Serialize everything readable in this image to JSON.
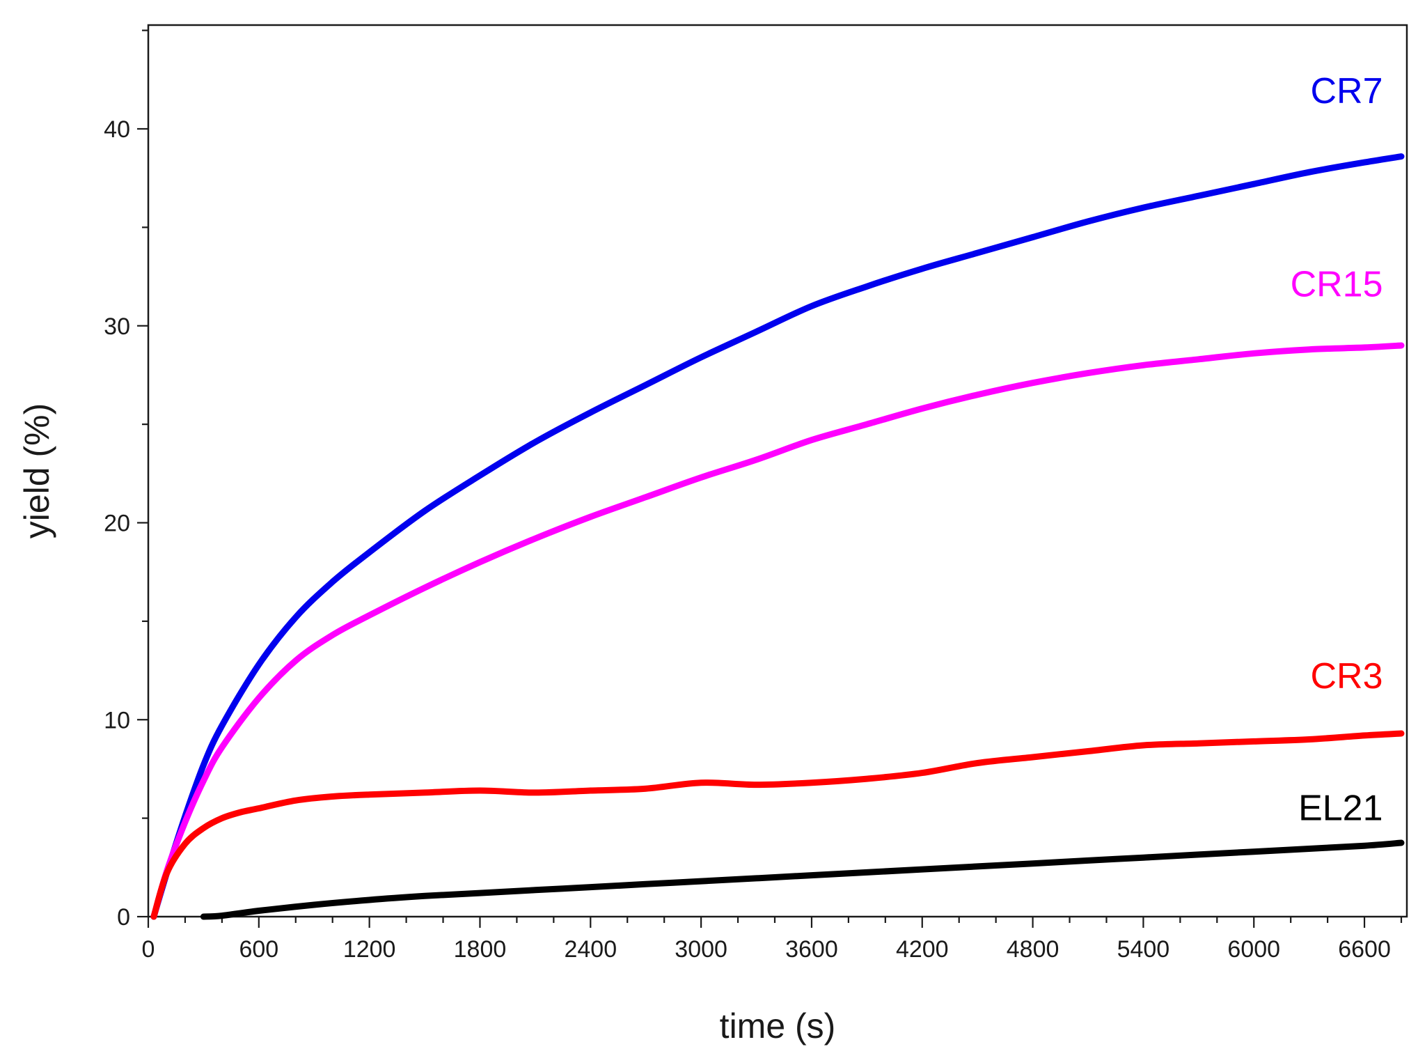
{
  "chart_data": {
    "type": "line",
    "title": "",
    "xlabel": "time (s)",
    "ylabel": "yield (%)",
    "xlim": [
      0,
      6800
    ],
    "ylim": [
      0,
      45
    ],
    "x_ticks": [
      0,
      600,
      1200,
      1800,
      2400,
      3000,
      3600,
      4200,
      4800,
      5400,
      6000,
      6600
    ],
    "x_tick_labels": [
      "0",
      "600",
      "1200",
      "1800",
      "2400",
      "3000",
      "3600",
      "4200",
      "4800",
      "5400",
      "6000",
      "6600"
    ],
    "x_minor_step": 200,
    "y_ticks": [
      0,
      10,
      20,
      30,
      40
    ],
    "y_tick_labels": [
      "0",
      "10",
      "20",
      "30",
      "40"
    ],
    "y_minor_step": 5,
    "grid": false,
    "legend": "none",
    "series": [
      {
        "name": "CR7",
        "color": "#0000ee",
        "label_anchor": [
          6700,
          41.3
        ],
        "x": [
          30,
          100,
          200,
          300,
          400,
          600,
          800,
          1000,
          1200,
          1500,
          1800,
          2100,
          2400,
          2700,
          3000,
          3300,
          3600,
          3900,
          4200,
          4500,
          4800,
          5100,
          5400,
          5700,
          6000,
          6300,
          6600,
          6800
        ],
        "y": [
          0,
          2.2,
          5.1,
          7.7,
          9.7,
          12.8,
          15.2,
          17.0,
          18.5,
          20.6,
          22.4,
          24.1,
          25.6,
          27.0,
          28.4,
          29.7,
          31.0,
          32.0,
          32.9,
          33.7,
          34.5,
          35.3,
          36.0,
          36.6,
          37.2,
          37.8,
          38.3,
          38.6
        ]
      },
      {
        "name": "CR15",
        "color": "#ff00ff",
        "label_anchor": [
          6700,
          31.5
        ],
        "x": [
          30,
          100,
          200,
          300,
          400,
          600,
          800,
          1000,
          1200,
          1500,
          1800,
          2100,
          2400,
          2700,
          3000,
          3300,
          3600,
          3900,
          4200,
          4500,
          4800,
          5100,
          5400,
          5700,
          6000,
          6300,
          6600,
          6800
        ],
        "y": [
          0,
          2.3,
          4.8,
          6.9,
          8.6,
          11.1,
          13.0,
          14.3,
          15.3,
          16.7,
          18.0,
          19.2,
          20.3,
          21.3,
          22.3,
          23.2,
          24.2,
          25.0,
          25.8,
          26.5,
          27.1,
          27.6,
          28.0,
          28.3,
          28.6,
          28.8,
          28.9,
          29.0
        ]
      },
      {
        "name": "CR3",
        "color": "#ff0000",
        "label_anchor": [
          6700,
          11.6
        ],
        "x": [
          30,
          100,
          200,
          300,
          400,
          500,
          600,
          800,
          1000,
          1200,
          1500,
          1800,
          2100,
          2400,
          2700,
          3000,
          3300,
          3600,
          3900,
          4200,
          4500,
          4800,
          5100,
          5400,
          5700,
          6000,
          6300,
          6600,
          6800
        ],
        "y": [
          0,
          2.2,
          3.7,
          4.5,
          5.0,
          5.3,
          5.5,
          5.9,
          6.1,
          6.2,
          6.3,
          6.4,
          6.3,
          6.4,
          6.5,
          6.8,
          6.7,
          6.8,
          7.0,
          7.3,
          7.8,
          8.1,
          8.4,
          8.7,
          8.8,
          8.9,
          9.0,
          9.2,
          9.3
        ]
      },
      {
        "name": "EL21",
        "color": "#000000",
        "label_anchor": [
          6700,
          4.9
        ],
        "x": [
          300,
          400,
          600,
          900,
          1200,
          1500,
          1800,
          2100,
          2400,
          2700,
          3000,
          3300,
          3600,
          3900,
          4200,
          4500,
          4800,
          5100,
          5400,
          5700,
          6000,
          6300,
          6600,
          6800
        ],
        "y": [
          0,
          0.05,
          0.3,
          0.6,
          0.85,
          1.05,
          1.2,
          1.35,
          1.5,
          1.65,
          1.8,
          1.95,
          2.1,
          2.25,
          2.4,
          2.55,
          2.7,
          2.85,
          3.0,
          3.15,
          3.3,
          3.45,
          3.6,
          3.75
        ]
      }
    ]
  }
}
